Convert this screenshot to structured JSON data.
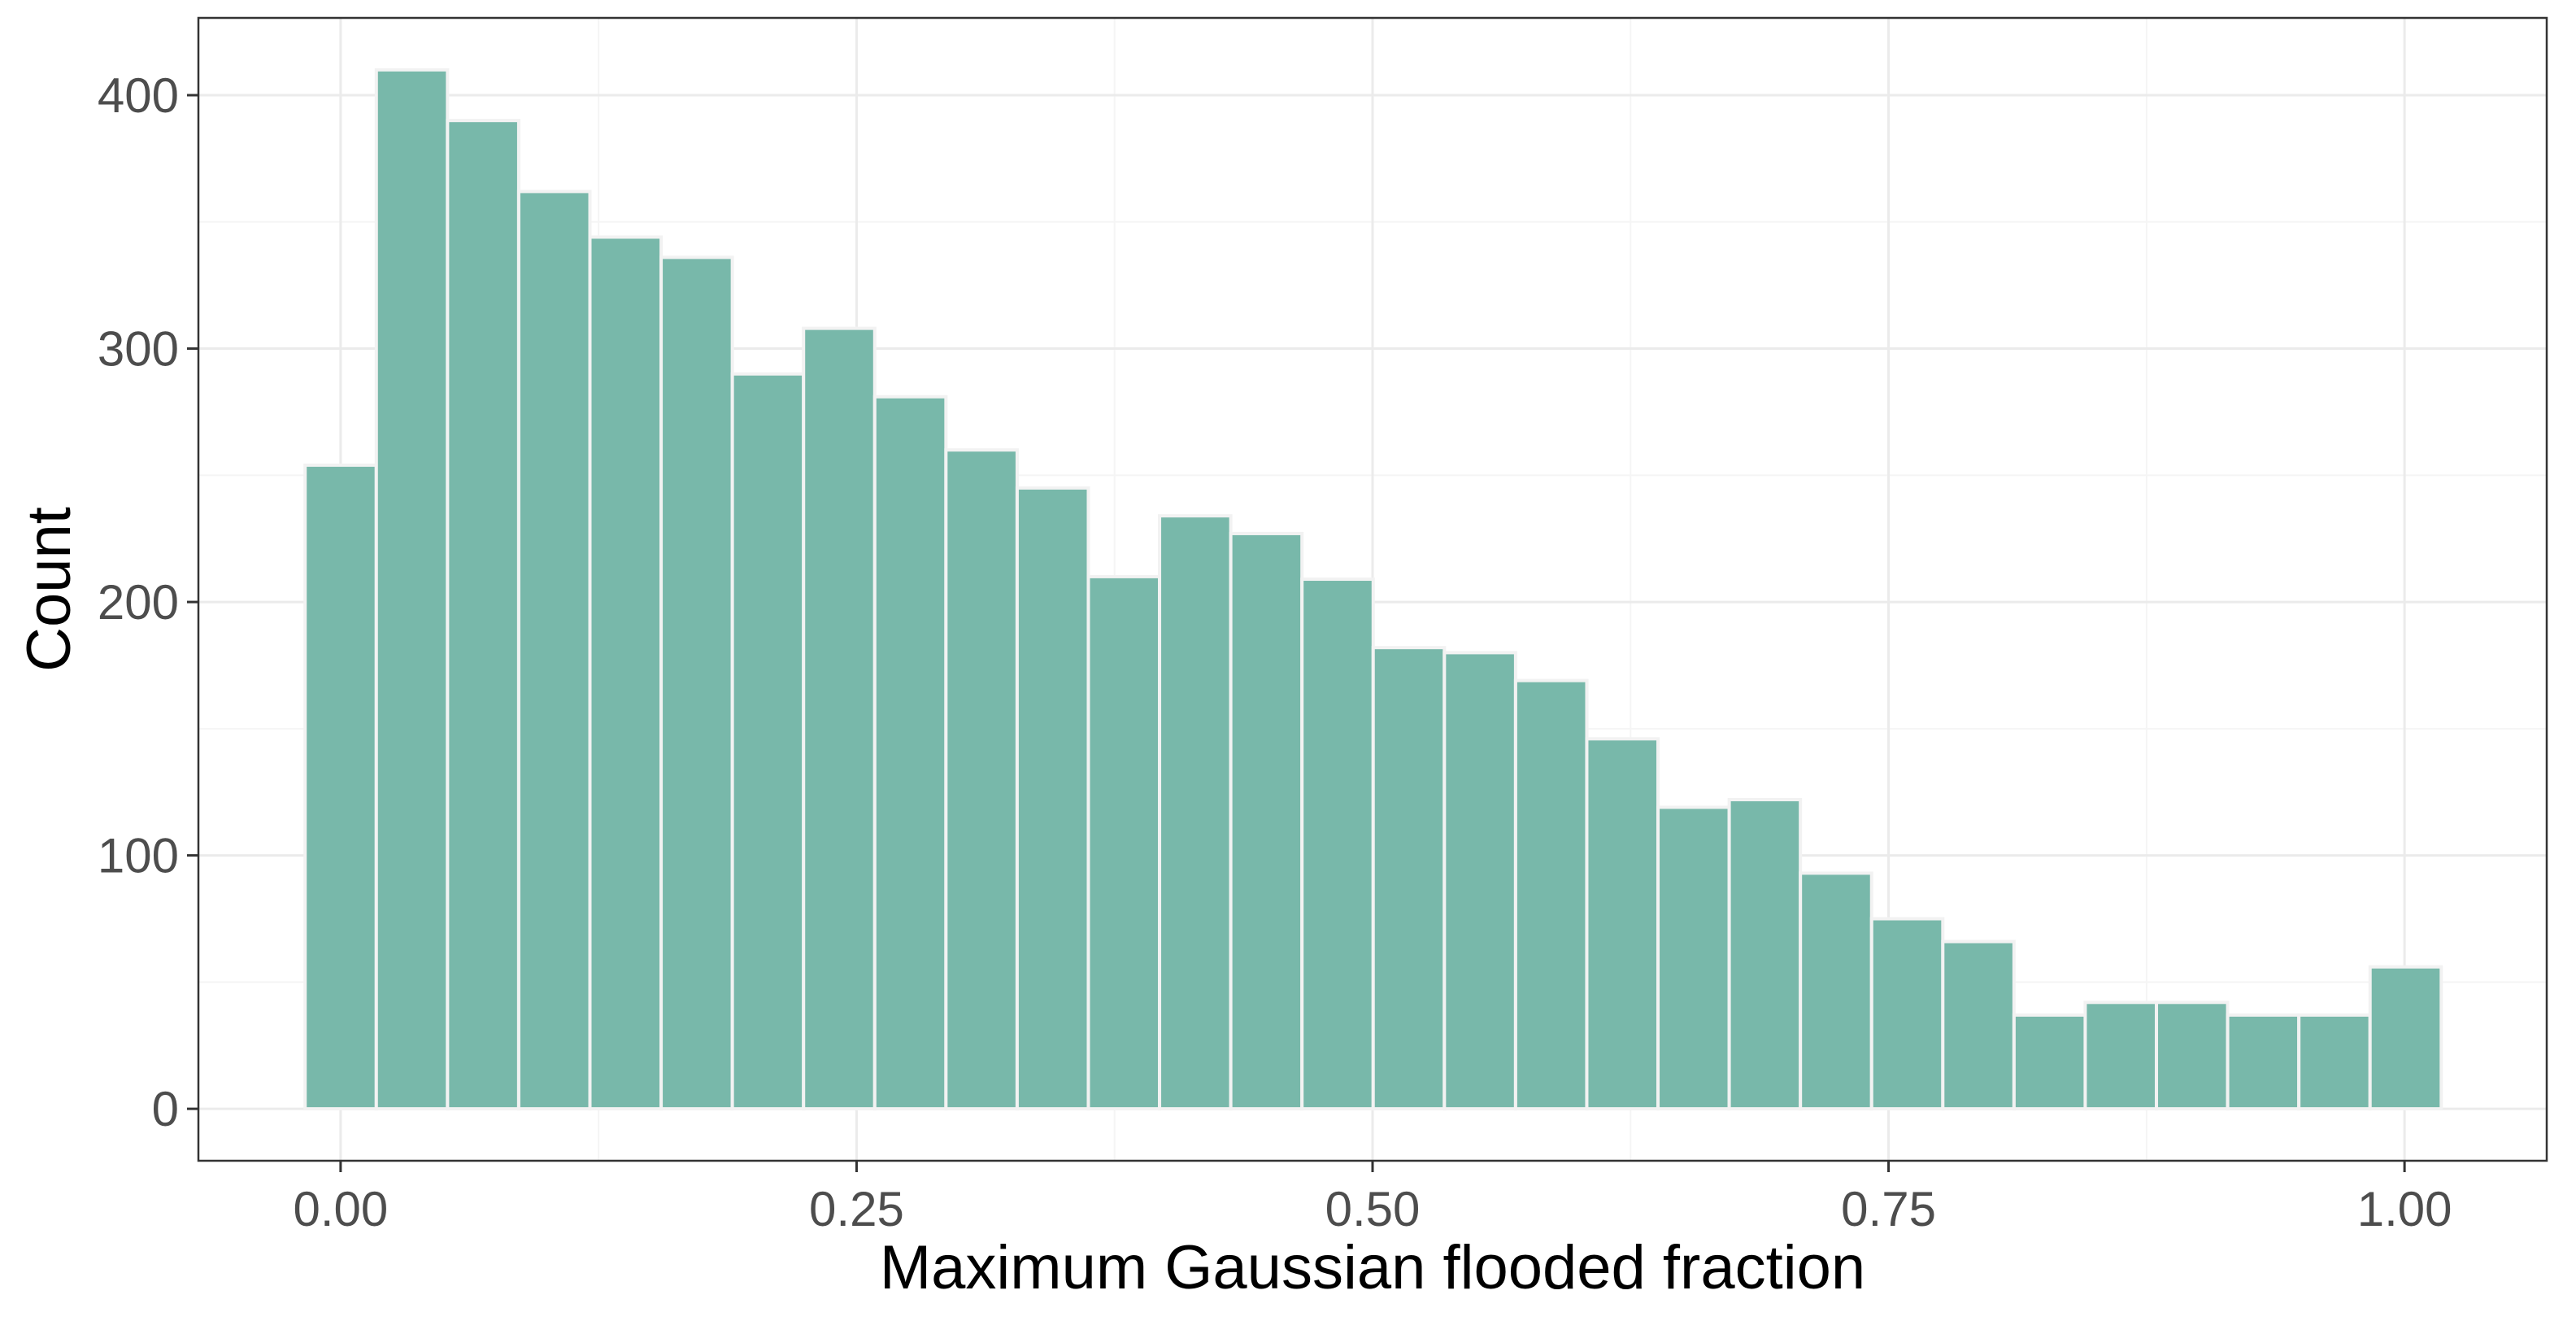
{
  "chart_data": {
    "type": "bar",
    "title": "",
    "xlabel": "Maximum Gaussian flooded fraction",
    "ylabel": "Count",
    "bin_width": 0.0345,
    "bin_start": -0.0172,
    "counts": [
      254,
      410,
      390,
      362,
      344,
      336,
      290,
      308,
      281,
      260,
      245,
      210,
      234,
      227,
      209,
      182,
      180,
      169,
      146,
      119,
      122,
      93,
      75,
      66,
      37,
      42,
      42,
      37,
      37,
      56
    ],
    "xlim": [
      -0.0689,
      1.0689
    ],
    "ylim": [
      -20.5,
      430.5
    ],
    "x_ticks": [
      0,
      0.25,
      0.5,
      0.75,
      1
    ],
    "x_tick_labels": [
      "0.00",
      "0.25",
      "0.50",
      "0.75",
      "1.00"
    ],
    "y_ticks": [
      0,
      100,
      200,
      300,
      400
    ],
    "y_tick_labels": [
      "0",
      "100",
      "200",
      "300",
      "400"
    ],
    "grid": true,
    "legend": "none",
    "colors": {
      "bar_fill": "#78b8aa",
      "bar_edge": "#f2f2f2",
      "grid_major": "#ebebeb",
      "grid_minor": "#f5f5f5",
      "panel_border": "#333333",
      "tick_text": "#4d4d4d",
      "axis_title": "#000000"
    }
  }
}
